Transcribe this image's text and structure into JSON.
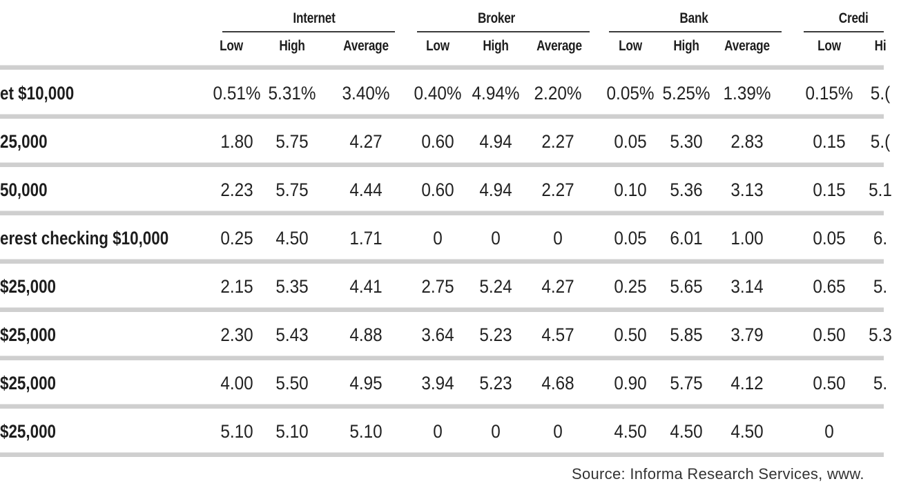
{
  "table": {
    "groups": [
      {
        "label": "Internet"
      },
      {
        "label": "Broker"
      },
      {
        "label": "Bank"
      },
      {
        "label": "Credi"
      }
    ],
    "subheaders": [
      "Low",
      "High",
      "Average",
      "Low",
      "High",
      "Average",
      "Low",
      "High",
      "Average",
      "Low",
      "Hi"
    ],
    "rows": [
      {
        "label": "et $10,000",
        "cells": [
          "0.51%",
          "5.31%",
          "3.40%",
          "0.40%",
          "4.94%",
          "2.20%",
          "0.05%",
          "5.25%",
          "1.39%",
          "0.15%",
          "5.("
        ]
      },
      {
        "label": "25,000",
        "cells": [
          "1.80",
          "5.75",
          "4.27",
          "0.60",
          "4.94",
          "2.27",
          "0.05",
          "5.30",
          "2.83",
          "0.15",
          "5.("
        ]
      },
      {
        "label": "50,000",
        "cells": [
          "2.23",
          "5.75",
          "4.44",
          "0.60",
          "4.94",
          "2.27",
          "0.10",
          "5.36",
          "3.13",
          "0.15",
          "5.1"
        ]
      },
      {
        "label": "erest checking $10,000",
        "cells": [
          "0.25",
          "4.50",
          "1.71",
          "0",
          "0",
          "0",
          "0.05",
          "6.01",
          "1.00",
          "0.05",
          "6."
        ]
      },
      {
        "label": "$25,000",
        "cells": [
          "2.15",
          "5.35",
          "4.41",
          "2.75",
          "5.24",
          "4.27",
          "0.25",
          "5.65",
          "3.14",
          "0.65",
          "5."
        ]
      },
      {
        "label": "$25,000",
        "cells": [
          "2.30",
          "5.43",
          "4.88",
          "3.64",
          "5.23",
          "4.57",
          "0.50",
          "5.85",
          "3.79",
          "0.50",
          "5.3"
        ]
      },
      {
        "label": " $25,000",
        "cells": [
          "4.00",
          "5.50",
          "4.95",
          "3.94",
          "5.23",
          "4.68",
          "0.90",
          "5.75",
          "4.12",
          "0.50",
          "5."
        ]
      },
      {
        "label": " $25,000",
        "cells": [
          "5.10",
          "5.10",
          "5.10",
          "0",
          "0",
          "0",
          "4.50",
          "4.50",
          "4.50",
          "0",
          ""
        ]
      }
    ]
  },
  "source": "Source: Informa Research Services, www."
}
